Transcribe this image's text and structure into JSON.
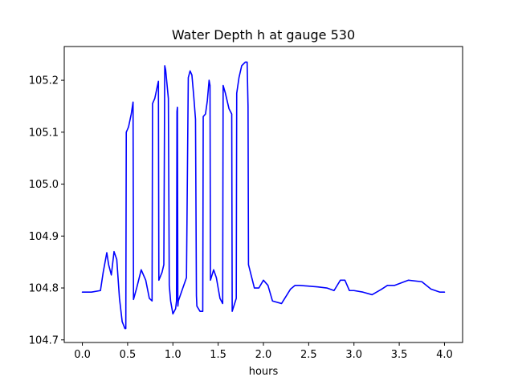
{
  "chart_data": {
    "type": "line",
    "title": "Water Depth h at gauge 530",
    "xlabel": "hours",
    "ylabel": "",
    "xlim": [
      -0.2,
      4.2
    ],
    "ylim": [
      104.695,
      105.265
    ],
    "xticks": [
      0.0,
      0.5,
      1.0,
      1.5,
      2.0,
      2.5,
      3.0,
      3.5,
      4.0
    ],
    "xtick_labels": [
      "0.0",
      "0.5",
      "1.0",
      "1.5",
      "2.0",
      "2.5",
      "3.0",
      "3.5",
      "4.0"
    ],
    "yticks": [
      104.7,
      104.8,
      104.9,
      105.0,
      105.1,
      105.2
    ],
    "ytick_labels": [
      "104.7",
      "104.8",
      "104.9",
      "105.0",
      "105.1",
      "105.2"
    ],
    "grid": false,
    "legend": null,
    "series": [
      {
        "color": "#0000ff",
        "x": [
          0.0,
          0.1,
          0.2,
          0.23,
          0.27,
          0.29,
          0.32,
          0.35,
          0.38,
          0.41,
          0.44,
          0.47,
          0.48,
          0.485,
          0.51,
          0.54,
          0.56,
          0.565,
          0.6,
          0.65,
          0.7,
          0.74,
          0.77,
          0.775,
          0.8,
          0.83,
          0.84,
          0.845,
          0.88,
          0.9,
          0.91,
          0.92,
          0.95,
          0.96,
          0.975,
          1.0,
          1.03,
          1.04,
          1.045,
          1.05,
          1.055,
          1.06,
          1.1,
          1.15,
          1.17,
          1.19,
          1.21,
          1.23,
          1.25,
          1.26,
          1.265,
          1.3,
          1.33,
          1.335,
          1.36,
          1.38,
          1.4,
          1.41,
          1.415,
          1.45,
          1.48,
          1.52,
          1.55,
          1.555,
          1.58,
          1.62,
          1.65,
          1.655,
          1.7,
          1.705,
          1.73,
          1.76,
          1.8,
          1.82,
          1.83,
          1.835,
          1.9,
          1.95,
          2.0,
          2.05,
          2.1,
          2.2,
          2.3,
          2.35,
          2.4,
          2.6,
          2.7,
          2.78,
          2.85,
          2.9,
          2.95,
          3.0,
          3.1,
          3.2,
          3.3,
          3.37,
          3.45,
          3.6,
          3.75,
          3.85,
          3.95,
          4.0
        ],
        "y": [
          104.792,
          104.792,
          104.795,
          104.83,
          104.868,
          104.845,
          104.825,
          104.87,
          104.855,
          104.78,
          104.735,
          104.722,
          104.722,
          105.1,
          105.11,
          105.135,
          105.158,
          104.778,
          104.8,
          104.835,
          104.815,
          104.78,
          104.775,
          105.155,
          105.165,
          105.19,
          105.198,
          104.815,
          104.83,
          104.845,
          105.228,
          105.22,
          105.165,
          104.805,
          104.775,
          104.75,
          104.76,
          104.775,
          105.14,
          105.148,
          104.765,
          104.775,
          104.795,
          104.82,
          105.205,
          105.218,
          105.21,
          105.17,
          105.125,
          104.785,
          104.765,
          104.755,
          104.755,
          105.13,
          105.135,
          105.16,
          105.2,
          105.19,
          104.815,
          104.835,
          104.82,
          104.78,
          104.77,
          105.19,
          105.175,
          105.145,
          105.135,
          104.755,
          104.78,
          105.175,
          105.205,
          105.228,
          105.235,
          105.235,
          105.15,
          104.845,
          104.8,
          104.8,
          104.815,
          104.805,
          104.775,
          104.77,
          104.798,
          104.805,
          104.805,
          104.802,
          104.8,
          104.795,
          104.815,
          104.815,
          104.795,
          104.795,
          104.792,
          104.787,
          104.797,
          104.805,
          104.805,
          104.815,
          104.812,
          104.798,
          104.792,
          104.792
        ]
      }
    ]
  }
}
